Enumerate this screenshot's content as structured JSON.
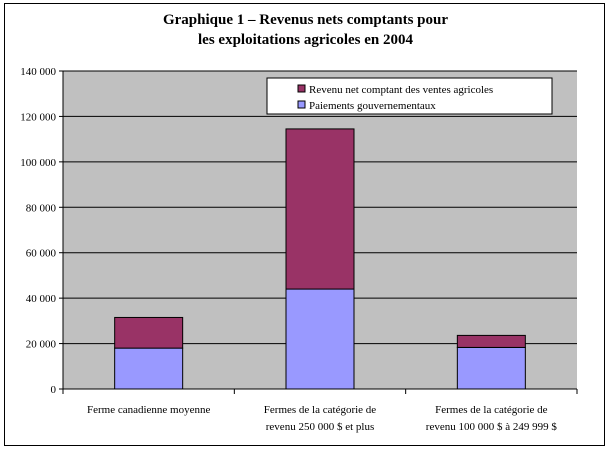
{
  "chart_data": {
    "type": "bar",
    "stacked": true,
    "title_lines": [
      "Graphique 1 – Revenus nets comptants pour",
      "les exploitations agricoles en 2004"
    ],
    "categories": [
      [
        "Ferme canadienne moyenne"
      ],
      [
        "Fermes de la catégorie de",
        "revenu 250 000 $ et plus"
      ],
      [
        "Fermes de la catégorie de",
        "revenu 100 000 $ à 249 999 $"
      ]
    ],
    "series": [
      {
        "name": "Paiements gouvernementaux",
        "color": "#9999ff",
        "values": [
          18000,
          44000,
          18300
        ]
      },
      {
        "name": "Revenu net comptant des ventes agricoles",
        "color": "#993366",
        "values": [
          13500,
          70500,
          5300
        ]
      }
    ],
    "ylim": [
      0,
      140000
    ],
    "yticks": [
      0,
      20000,
      40000,
      60000,
      80000,
      100000,
      120000,
      140000
    ],
    "ytick_labels": [
      "0",
      "20 000",
      "40 000",
      "60 000",
      "80 000",
      "100 000",
      "120 000",
      "140 000"
    ],
    "grid": true,
    "plot_background": "#c0c0c0",
    "legend_position": "top-right"
  }
}
